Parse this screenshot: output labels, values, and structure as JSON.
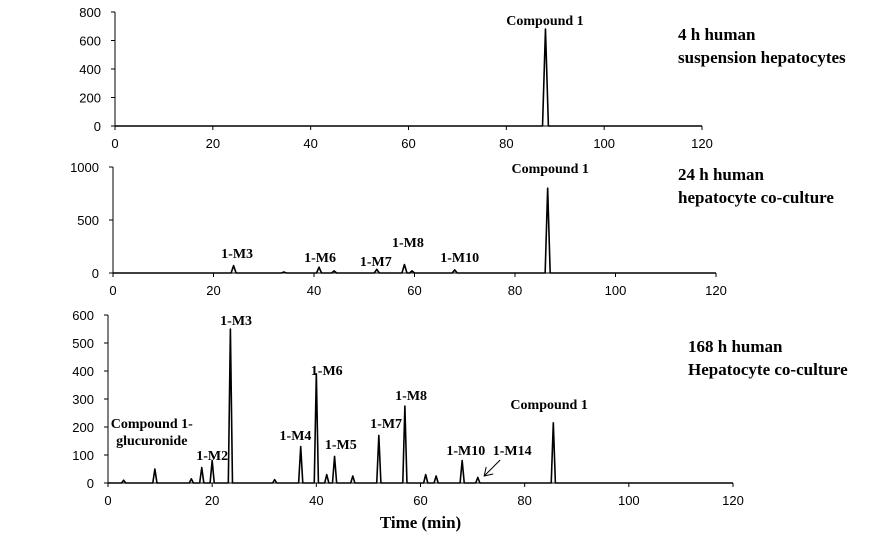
{
  "chart_data": [
    {
      "type": "line",
      "title": [
        "4 h human",
        "suspension hepatocytes"
      ],
      "x": [
        0,
        87.4,
        88,
        88.6,
        120
      ],
      "values": [
        0,
        0,
        680,
        0,
        0
      ],
      "color": "#000000",
      "xlim": [
        0,
        120
      ],
      "xticks": [
        0,
        20,
        40,
        60,
        80,
        100,
        120
      ],
      "ylim": [
        0,
        800
      ],
      "yticks": [
        0,
        200,
        400,
        600,
        800
      ],
      "peaks": [
        {
          "label": "Compound 1",
          "x": 87.9,
          "y": 710
        }
      ]
    },
    {
      "type": "line",
      "title": [
        "24 h human",
        "hepatocyte co-culture"
      ],
      "x": [
        0,
        23.5,
        24,
        24.5,
        33.5,
        34,
        34.5,
        40.5,
        41,
        41.5,
        43.5,
        44,
        44.5,
        52,
        52.5,
        53,
        57.5,
        58,
        58.5,
        59,
        59.5,
        60,
        67.5,
        68,
        68.5,
        86,
        86.5,
        87,
        120
      ],
      "values": [
        0,
        0,
        70,
        0,
        0,
        10,
        0,
        0,
        55,
        0,
        0,
        20,
        0,
        0,
        35,
        0,
        0,
        80,
        0,
        0,
        20,
        0,
        0,
        30,
        0,
        0,
        800,
        0,
        0
      ],
      "color": "#000000",
      "xlim": [
        0,
        120
      ],
      "xticks": [
        0,
        20,
        40,
        60,
        80,
        100,
        120
      ],
      "ylim": [
        0,
        1000
      ],
      "yticks": [
        0,
        500,
        1000
      ],
      "peaks": [
        {
          "label": "1-M3",
          "x": 24.7,
          "y": 142
        },
        {
          "label": "1-M6",
          "x": 41.2,
          "y": 104
        },
        {
          "label": "1-M7",
          "x": 52.3,
          "y": 66
        },
        {
          "label": "1-M8",
          "x": 58.7,
          "y": 245
        },
        {
          "label": "1-M10",
          "x": 69,
          "y": 104
        },
        {
          "label": "Compound 1",
          "x": 87,
          "y": 943
        }
      ]
    },
    {
      "type": "line",
      "title": [
        "168 h human",
        "Hepatocyte co-culture"
      ],
      "xlabel": "Time (min)",
      "x": [
        0,
        2.6,
        3,
        3.4,
        8.6,
        9,
        9.4,
        15.6,
        16,
        16.4,
        17.6,
        18,
        18.4,
        19.6,
        20,
        20.4,
        23.1,
        23.5,
        23.9,
        31.6,
        32,
        32.4,
        36.6,
        37,
        37.4,
        39.6,
        40,
        40.4,
        41.6,
        42,
        42.4,
        43.1,
        43.5,
        43.9,
        46.6,
        47,
        47.4,
        51.6,
        52,
        52.4,
        56.6,
        57,
        57.4,
        60.6,
        61,
        61.4,
        62.6,
        63,
        63.4,
        67.6,
        68,
        68.4,
        70.6,
        71,
        71.4,
        85.1,
        85.5,
        85.9,
        120
      ],
      "values": [
        0,
        0,
        10,
        0,
        0,
        50,
        0,
        0,
        15,
        0,
        0,
        55,
        0,
        0,
        80,
        0,
        0,
        550,
        0,
        0,
        12,
        0,
        0,
        130,
        0,
        0,
        390,
        0,
        0,
        30,
        0,
        0,
        95,
        0,
        0,
        25,
        0,
        0,
        170,
        0,
        0,
        275,
        0,
        0,
        30,
        0,
        0,
        25,
        0,
        0,
        80,
        0,
        0,
        20,
        0,
        0,
        215,
        0,
        0
      ],
      "color": "#000000",
      "xlim": [
        0,
        120
      ],
      "xticks": [
        0,
        20,
        40,
        60,
        80,
        100,
        120
      ],
      "ylim": [
        0,
        600
      ],
      "yticks": [
        0,
        100,
        200,
        300,
        400,
        500,
        600
      ],
      "peaks": [
        {
          "label": [
            "Compound 1-",
            "glucuronide"
          ],
          "x": 8.4,
          "y": 136
        },
        {
          "label": "1-M2",
          "x": 20,
          "y": 82
        },
        {
          "label": "1-M3",
          "x": 24.6,
          "y": 564
        },
        {
          "label": "1-M4",
          "x": 36,
          "y": 154
        },
        {
          "label": "1-M6",
          "x": 42,
          "y": 386
        },
        {
          "label": "1-M5",
          "x": 44.7,
          "y": 121
        },
        {
          "label": "1-M7",
          "x": 53.4,
          "y": 196
        },
        {
          "label": "1-M8",
          "x": 58.2,
          "y": 296
        },
        {
          "label": "1-M10",
          "x": 68.7,
          "y": 100
        },
        {
          "label": "1-M14",
          "x": 77.6,
          "y": 100,
          "arrow": true
        },
        {
          "label": "Compound 1",
          "x": 84.7,
          "y": 264
        }
      ]
    }
  ]
}
